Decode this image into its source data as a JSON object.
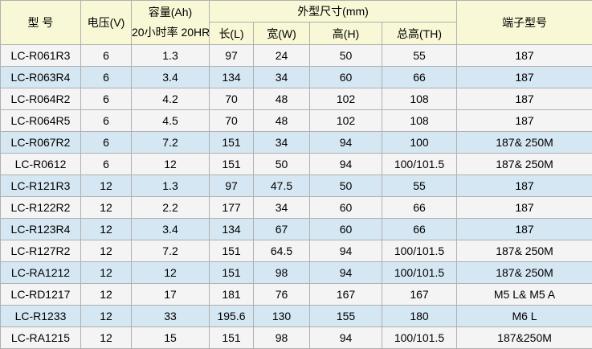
{
  "table": {
    "header": {
      "col_model": "型 号",
      "col_voltage": "电压(V)",
      "col_capacity_line1": "容量(Ah)",
      "col_capacity_line2": "20小时率 20HR",
      "col_dimensions": "外型尺寸(mm)",
      "col_length": "长(L)",
      "col_width": "宽(W)",
      "col_height": "高(H)",
      "col_total_height": "总高(TH)",
      "col_terminal": "端子型号"
    },
    "rows": [
      {
        "model": "LC-R061R3",
        "voltage": "6",
        "capacity": "1.3",
        "length": "97",
        "width": "24",
        "height": "50",
        "total_height": "55",
        "terminal": "187",
        "highlighted": false
      },
      {
        "model": "LC-R063R4",
        "voltage": "6",
        "capacity": "3.4",
        "length": "134",
        "width": "34",
        "height": "60",
        "total_height": "66",
        "terminal": "187",
        "highlighted": true
      },
      {
        "model": "LC-R064R2",
        "voltage": "6",
        "capacity": "4.2",
        "length": "70",
        "width": "48",
        "height": "102",
        "total_height": "108",
        "terminal": "187",
        "highlighted": false
      },
      {
        "model": "LC-R064R5",
        "voltage": "6",
        "capacity": "4.5",
        "length": "70",
        "width": "48",
        "height": "102",
        "total_height": "108",
        "terminal": "187",
        "highlighted": false
      },
      {
        "model": "LC-R067R2",
        "voltage": "6",
        "capacity": "7.2",
        "length": "151",
        "width": "34",
        "height": "94",
        "total_height": "100",
        "terminal": "187& 250M",
        "highlighted": true
      },
      {
        "model": "LC-R0612",
        "voltage": "6",
        "capacity": "12",
        "length": "151",
        "width": "50",
        "height": "94",
        "total_height": "100/101.5",
        "terminal": "187& 250M",
        "highlighted": false
      },
      {
        "model": "LC-R121R3",
        "voltage": "12",
        "capacity": "1.3",
        "length": "97",
        "width": "47.5",
        "height": "50",
        "total_height": "55",
        "terminal": "187",
        "highlighted": true
      },
      {
        "model": "LC-R122R2",
        "voltage": "12",
        "capacity": "2.2",
        "length": "177",
        "width": "34",
        "height": "60",
        "total_height": "66",
        "terminal": "187",
        "highlighted": false
      },
      {
        "model": "LC-R123R4",
        "voltage": "12",
        "capacity": "3.4",
        "length": "134",
        "width": "67",
        "height": "60",
        "total_height": "66",
        "terminal": "187",
        "highlighted": true
      },
      {
        "model": "LC-R127R2",
        "voltage": "12",
        "capacity": "7.2",
        "length": "151",
        "width": "64.5",
        "height": "94",
        "total_height": "100/101.5",
        "terminal": "187& 250M",
        "highlighted": false
      },
      {
        "model": "LC-RA1212",
        "voltage": "12",
        "capacity": "12",
        "length": "151",
        "width": "98",
        "height": "94",
        "total_height": "100/101.5",
        "terminal": "187& 250M",
        "highlighted": true
      },
      {
        "model": "LC-RD1217",
        "voltage": "12",
        "capacity": "17",
        "length": "181",
        "width": "76",
        "height": "167",
        "total_height": "167",
        "terminal": "M5 L& M5 A",
        "highlighted": false
      },
      {
        "model": "LC-R1233",
        "voltage": "12",
        "capacity": "33",
        "length": "195.6",
        "width": "130",
        "height": "155",
        "total_height": "180",
        "terminal": "M6 L",
        "highlighted": true
      },
      {
        "model": "LC-RA1215",
        "voltage": "12",
        "capacity": "15",
        "length": "151",
        "width": "98",
        "height": "94",
        "total_height": "100/101.5",
        "terminal": "187&250M",
        "highlighted": false
      }
    ]
  },
  "colors": {
    "header_bg": "#f8f8d6",
    "row_bg": "#f4f4f4",
    "row_highlight_bg": "#d5e7f2",
    "border": "#b0b0b0",
    "text": "#000000"
  }
}
